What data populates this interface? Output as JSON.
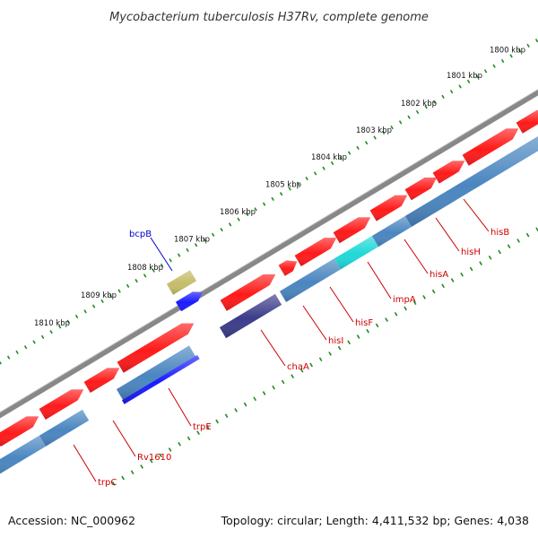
{
  "title": "Mycobacterium tuberculosis H37Rv, complete genome",
  "footer": {
    "accession": "Accession: NC_000962",
    "summary": "Topology: circular; Length: 4,411,532 bp; Genes: 4,038"
  },
  "ticks": [
    "1800 kbp",
    "1801 kbp",
    "1802 kbp",
    "1803 kbp",
    "1804 kbp",
    "1805 kbp",
    "1806 kbp",
    "1807 kbp",
    "1808 kbp",
    "1809 kbp",
    "1810 kbp"
  ],
  "colors": {
    "backbone": "#888888",
    "cds_red": "#ff1a1a",
    "steel_blue": "#4a86c0",
    "navy": "#3c3c8a",
    "blue": "#1a1aff",
    "cyan": "#20d8d8",
    "olive": "#c6bc6a",
    "tick_green": "#1e8c1e",
    "label_red": "#cc0000",
    "label_blue": "#0000cc"
  },
  "labels": [
    {
      "name": "bcpB",
      "color": "blue"
    },
    {
      "name": "hisB",
      "color": "red"
    },
    {
      "name": "hisH",
      "color": "red"
    },
    {
      "name": "hisA",
      "color": "red"
    },
    {
      "name": "impA",
      "color": "red"
    },
    {
      "name": "hisF",
      "color": "red"
    },
    {
      "name": "hisI",
      "color": "red"
    },
    {
      "name": "chaA",
      "color": "red"
    },
    {
      "name": "trpE",
      "color": "red"
    },
    {
      "name": "Rv1610",
      "color": "red"
    },
    {
      "name": "trpC",
      "color": "red"
    }
  ]
}
